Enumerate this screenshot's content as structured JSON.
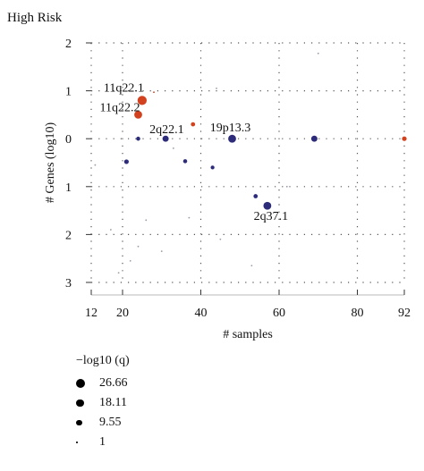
{
  "chart_data": {
    "type": "scatter",
    "title": "High Risk",
    "xlabel": "# samples",
    "ylabel": "# Genes (log10)",
    "xlim": [
      12,
      92
    ],
    "ylim": [
      -3,
      2
    ],
    "x_ticks": [
      12,
      20,
      40,
      60,
      80,
      92
    ],
    "y_ticks": [
      {
        "value": 2,
        "label": "2"
      },
      {
        "value": 1,
        "label": "1"
      },
      {
        "value": 0,
        "label": "0"
      },
      {
        "value": -1,
        "label": "1"
      },
      {
        "value": -2,
        "label": "2"
      },
      {
        "value": -3,
        "label": "3"
      }
    ],
    "grid": "dotted",
    "colors": {
      "amplification": "#d2421e",
      "deletion": "#2c2c7a",
      "minor": "#9a9aa6"
    },
    "labeled_points": [
      {
        "label": "11q22.1",
        "x": 25,
        "y": 0.8,
        "size": 26.66,
        "group": "amplification"
      },
      {
        "label": "11q22.2",
        "x": 24,
        "y": 0.5,
        "size": 18.11,
        "group": "amplification"
      },
      {
        "label": "2q22.1",
        "x": 31,
        "y": 0.0,
        "size": 9.55,
        "group": "deletion"
      },
      {
        "label": "19p13.3",
        "x": 48,
        "y": 0.0,
        "size": 18.11,
        "group": "deletion"
      },
      {
        "label": "2q37.1",
        "x": 57,
        "y": -1.4,
        "size": 18.11,
        "group": "deletion"
      }
    ],
    "points": [
      {
        "x": 69,
        "y": 0.0,
        "size": 9.55,
        "group": "deletion"
      },
      {
        "x": 92,
        "y": 0.0,
        "size": 4,
        "group": "amplification"
      },
      {
        "x": 38,
        "y": 0.3,
        "size": 3,
        "group": "amplification"
      },
      {
        "x": 21,
        "y": -0.48,
        "size": 4,
        "group": "deletion"
      },
      {
        "x": 36,
        "y": -0.47,
        "size": 2.5,
        "group": "deletion"
      },
      {
        "x": 24,
        "y": 0.0,
        "size": 2.5,
        "group": "deletion"
      },
      {
        "x": 43,
        "y": -0.6,
        "size": 2,
        "group": "deletion"
      },
      {
        "x": 54,
        "y": -1.2,
        "size": 3,
        "group": "deletion"
      },
      {
        "x": 28,
        "y": 0.97,
        "size": 1.5,
        "group": "amplification"
      },
      {
        "x": 70,
        "y": 1.78,
        "size": 1.5,
        "group": "minor"
      },
      {
        "x": 53,
        "y": -2.65,
        "size": 1.5,
        "group": "minor"
      },
      {
        "x": 22,
        "y": -2.55,
        "size": 1.5,
        "group": "minor"
      },
      {
        "x": 45,
        "y": -2.1,
        "size": 1.5,
        "group": "minor"
      },
      {
        "x": 19,
        "y": -2.8,
        "size": 1.5,
        "group": "minor"
      },
      {
        "x": 13,
        "y": -0.55,
        "size": 1.5,
        "group": "minor"
      },
      {
        "x": 37,
        "y": -1.65,
        "size": 1.5,
        "group": "minor"
      },
      {
        "x": 26,
        "y": -1.7,
        "size": 1.5,
        "group": "minor"
      },
      {
        "x": 24,
        "y": -2.25,
        "size": 1.5,
        "group": "minor"
      },
      {
        "x": 44,
        "y": 1.05,
        "size": 1.5,
        "group": "minor"
      },
      {
        "x": 33,
        "y": -0.2,
        "size": 1.5,
        "group": "minor"
      },
      {
        "x": 62,
        "y": -1.0,
        "size": 1.5,
        "group": "minor"
      },
      {
        "x": 30,
        "y": -2.35,
        "size": 1.5,
        "group": "minor"
      },
      {
        "x": 17,
        "y": -1.9,
        "size": 1.5,
        "group": "minor"
      }
    ],
    "legend": {
      "title": "−log10 (q)",
      "placement": "bottom-left",
      "entries": [
        {
          "label": "26.66",
          "size": 26.66
        },
        {
          "label": "18.11",
          "size": 18.11
        },
        {
          "label": "9.55",
          "size": 9.55
        },
        {
          "label": "1",
          "size": 1
        }
      ]
    }
  }
}
